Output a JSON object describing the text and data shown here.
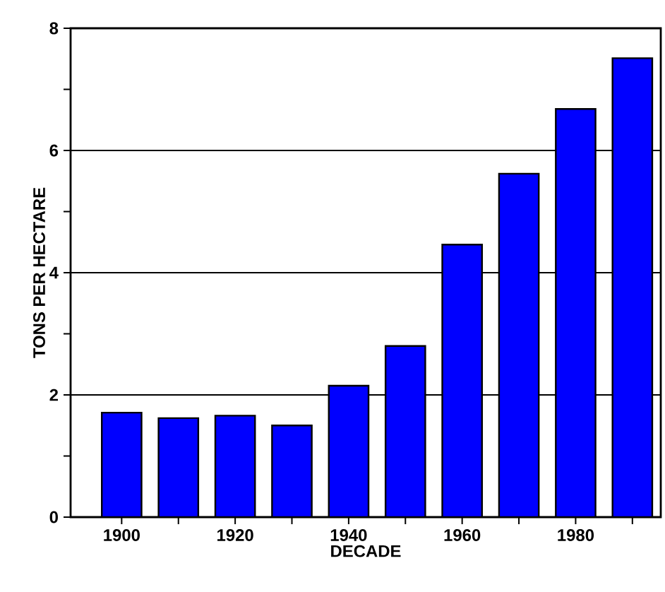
{
  "chart_data": {
    "type": "bar",
    "xlabel": "DECADE",
    "ylabel": "TONS PER HECTARE",
    "x": [
      1900,
      1910,
      1920,
      1930,
      1940,
      1950,
      1960,
      1970,
      1980,
      1990
    ],
    "values": [
      1.71,
      1.62,
      1.66,
      1.5,
      2.15,
      2.8,
      4.46,
      5.62,
      6.68,
      7.51
    ],
    "color": "#0000ff",
    "xlim": [
      1891,
      1995
    ],
    "xticks": [
      1900,
      {
        "value": 1910,
        "label": null
      },
      1920,
      {
        "value": 1930,
        "label": null
      },
      1940,
      {
        "value": 1950,
        "label": null
      },
      1960,
      {
        "value": 1970,
        "label": null
      },
      1980,
      {
        "value": 1990,
        "label": null
      }
    ],
    "ylim": [
      0,
      8
    ],
    "yticks": [
      0,
      {
        "value": 1,
        "label": null
      },
      2,
      {
        "value": 3,
        "label": null
      },
      4,
      {
        "value": 5,
        "label": null
      },
      6,
      {
        "value": 7,
        "label": null
      },
      8
    ],
    "grid": "y"
  }
}
